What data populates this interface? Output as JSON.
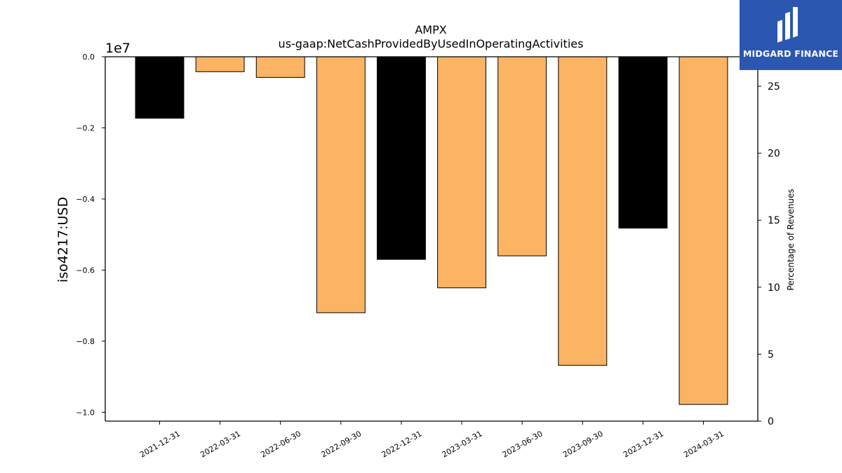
{
  "brand": {
    "name": "MIDGARD FINANCE",
    "color": "#2b57b0",
    "icon": "midgard-logo-icon"
  },
  "chart_data": {
    "type": "bar",
    "title": "AMPX",
    "subtitle": "us-gaap:NetCashProvidedByUsedInOperatingActivities",
    "ylabel": "iso4217:USD",
    "y_offset_label": "1e7",
    "y2label": "Percentage of Revenues",
    "categories": [
      "2021-12-31",
      "2022-03-31",
      "2022-06-30",
      "2022-09-30",
      "2022-12-31",
      "2023-03-31",
      "2023-06-30",
      "2023-09-30",
      "2023-12-31",
      "2024-03-31"
    ],
    "values": [
      -1730000,
      -420000,
      -580000,
      -7200000,
      -5700000,
      -6500000,
      -5600000,
      -8680000,
      -4820000,
      -9780000
    ],
    "bar_colors": [
      "#000000",
      "#fbb464",
      "#fbb464",
      "#fbb464",
      "#000000",
      "#fbb464",
      "#fbb464",
      "#fbb464",
      "#000000",
      "#fbb464"
    ],
    "ylim": [
      -10250000,
      0
    ],
    "yticks": [
      0,
      -2000000,
      -4000000,
      -6000000,
      -8000000,
      -10000000
    ],
    "ytick_labels": [
      "0.0",
      "−0.2",
      "−0.4",
      "−0.6",
      "−0.8",
      "−1.0"
    ],
    "y2lim": [
      0,
      27.2
    ],
    "y2ticks": [
      0,
      5,
      10,
      15,
      20,
      25
    ],
    "y2tick_labels": [
      "0",
      "5",
      "10",
      "15",
      "20",
      "25"
    ],
    "grid": false,
    "legend": "none"
  }
}
